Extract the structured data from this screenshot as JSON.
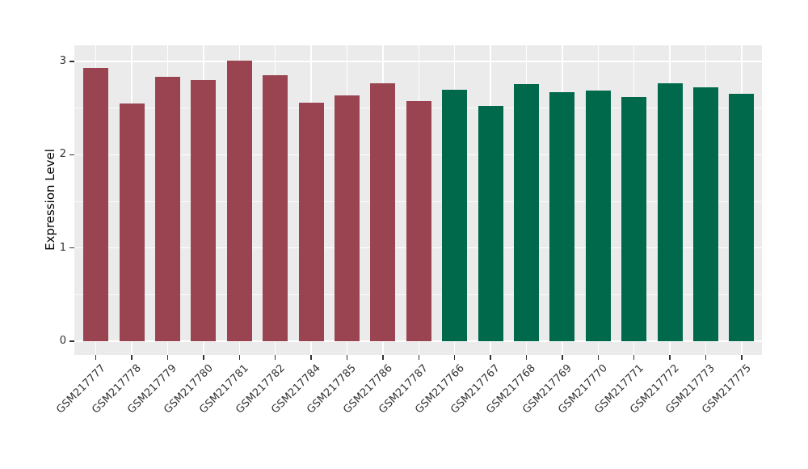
{
  "figure": {
    "background_color": "#FFFFFF",
    "panel_background_color": "#EBEBEB",
    "gridline_color": "#FFFFFF",
    "axis_text_color": "#333333",
    "group_colors": {
      "left_group": "#9A4452",
      "right_group": "#00684B"
    }
  },
  "chart_data": {
    "type": "bar",
    "title": "",
    "xlabel": "",
    "ylabel": "Expression Level",
    "ylim": [
      -0.15,
      3.16
    ],
    "yticks": [
      0,
      1,
      2,
      3
    ],
    "yticks_minor": [
      0.5,
      1.5,
      2.5
    ],
    "grid": "white major+minor horizontal, white major vertical, gray panel (ggplot style)",
    "legend_position": "none",
    "x_tick_label_rotation_deg": 45,
    "categories": [
      "GSM217777",
      "GSM217778",
      "GSM217779",
      "GSM217780",
      "GSM217781",
      "GSM217782",
      "GSM217784",
      "GSM217785",
      "GSM217786",
      "GSM217787",
      "GSM217766",
      "GSM217767",
      "GSM217768",
      "GSM217769",
      "GSM217770",
      "GSM217771",
      "GSM217772",
      "GSM217773",
      "GSM217775"
    ],
    "values": [
      2.93,
      2.55,
      2.84,
      2.8,
      3.01,
      2.85,
      2.56,
      2.64,
      2.77,
      2.58,
      2.7,
      2.52,
      2.76,
      2.67,
      2.69,
      2.62,
      2.77,
      2.72,
      2.65
    ],
    "bars": [
      {
        "label": "GSM217777",
        "value": 2.93,
        "color": "#9A4452"
      },
      {
        "label": "GSM217778",
        "value": 2.55,
        "color": "#9A4452"
      },
      {
        "label": "GSM217779",
        "value": 2.84,
        "color": "#9A4452"
      },
      {
        "label": "GSM217780",
        "value": 2.8,
        "color": "#9A4452"
      },
      {
        "label": "GSM217781",
        "value": 3.01,
        "color": "#9A4452"
      },
      {
        "label": "GSM217782",
        "value": 2.85,
        "color": "#9A4452"
      },
      {
        "label": "GSM217784",
        "value": 2.56,
        "color": "#9A4452"
      },
      {
        "label": "GSM217785",
        "value": 2.64,
        "color": "#9A4452"
      },
      {
        "label": "GSM217786",
        "value": 2.77,
        "color": "#9A4452"
      },
      {
        "label": "GSM217787",
        "value": 2.58,
        "color": "#9A4452"
      },
      {
        "label": "GSM217766",
        "value": 2.7,
        "color": "#00684B"
      },
      {
        "label": "GSM217767",
        "value": 2.52,
        "color": "#00684B"
      },
      {
        "label": "GSM217768",
        "value": 2.76,
        "color": "#00684B"
      },
      {
        "label": "GSM217769",
        "value": 2.67,
        "color": "#00684B"
      },
      {
        "label": "GSM217770",
        "value": 2.69,
        "color": "#00684B"
      },
      {
        "label": "GSM217771",
        "value": 2.62,
        "color": "#00684B"
      },
      {
        "label": "GSM217772",
        "value": 2.77,
        "color": "#00684B"
      },
      {
        "label": "GSM217773",
        "value": 2.72,
        "color": "#00684B"
      },
      {
        "label": "GSM217775",
        "value": 2.65,
        "color": "#00684B"
      }
    ]
  }
}
